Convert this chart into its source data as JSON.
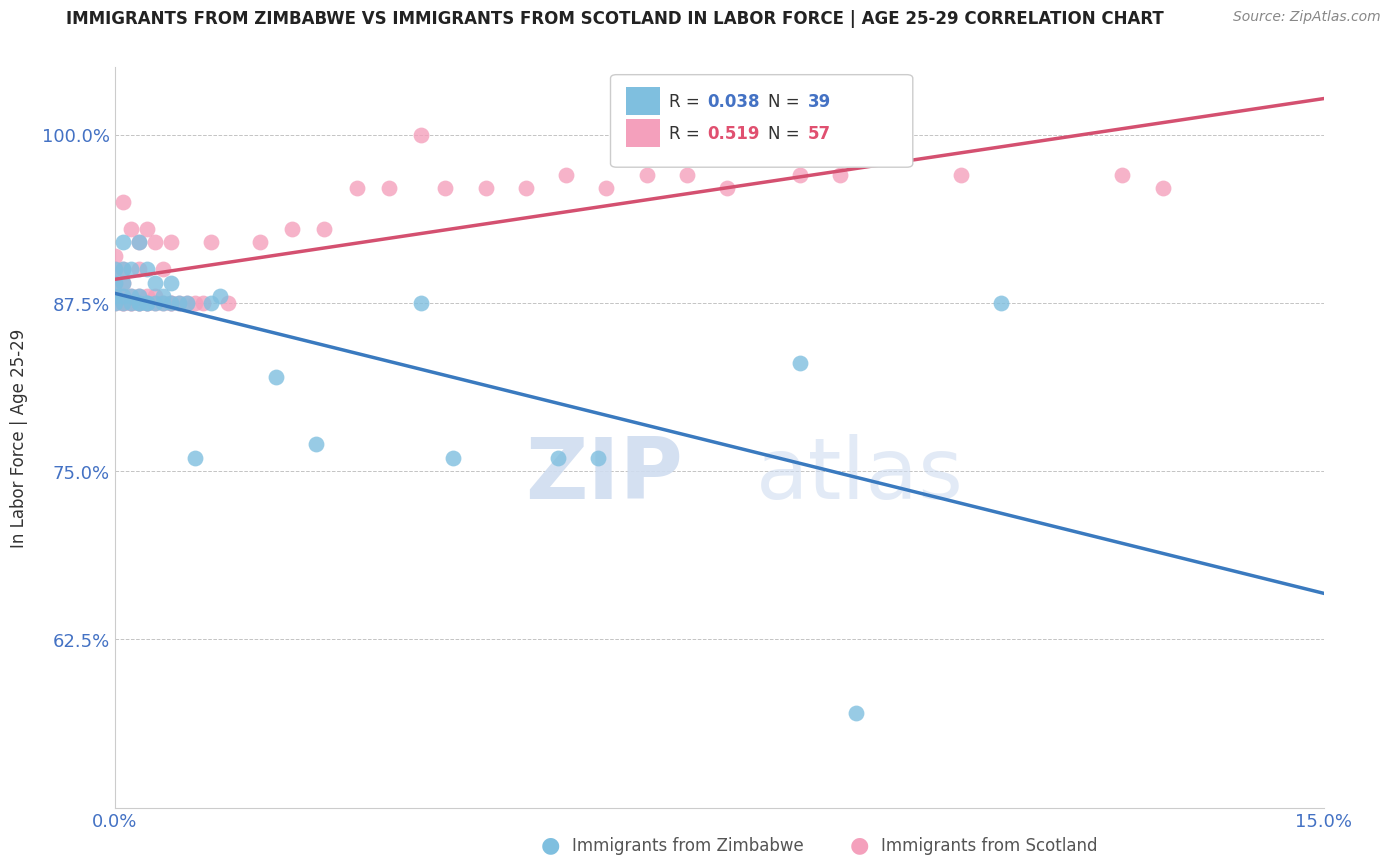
{
  "title": "IMMIGRANTS FROM ZIMBABWE VS IMMIGRANTS FROM SCOTLAND IN LABOR FORCE | AGE 25-29 CORRELATION CHART",
  "source": "Source: ZipAtlas.com",
  "ylabel": "In Labor Force | Age 25-29",
  "xlim": [
    0.0,
    0.15
  ],
  "ylim": [
    0.5,
    1.05
  ],
  "yticks": [
    0.625,
    0.75,
    0.875,
    1.0
  ],
  "ytick_labels": [
    "62.5%",
    "75.0%",
    "87.5%",
    "100.0%"
  ],
  "xticks": [
    0.0,
    0.15
  ],
  "xtick_labels": [
    "0.0%",
    "15.0%"
  ],
  "legend1_R": "0.038",
  "legend1_N": "39",
  "legend2_R": "0.519",
  "legend2_N": "57",
  "color_zimbabwe": "#7fbfdf",
  "color_scotland": "#f4a0bc",
  "color_line_zimbabwe": "#3a7abf",
  "color_line_scotland": "#d45070",
  "watermark_zip": "ZIP",
  "watermark_atlas": "atlas",
  "zimbabwe_x": [
    0.0,
    0.0,
    0.0,
    0.0,
    0.001,
    0.001,
    0.001,
    0.001,
    0.001,
    0.002,
    0.002,
    0.002,
    0.003,
    0.003,
    0.003,
    0.003,
    0.004,
    0.004,
    0.004,
    0.005,
    0.005,
    0.006,
    0.006,
    0.007,
    0.007,
    0.008,
    0.009,
    0.01,
    0.012,
    0.013,
    0.02,
    0.025,
    0.038,
    0.042,
    0.055,
    0.06,
    0.085,
    0.092,
    0.11
  ],
  "zimbabwe_y": [
    0.875,
    0.88,
    0.89,
    0.9,
    0.875,
    0.88,
    0.89,
    0.9,
    0.92,
    0.875,
    0.88,
    0.9,
    0.875,
    0.875,
    0.88,
    0.92,
    0.875,
    0.875,
    0.9,
    0.875,
    0.89,
    0.88,
    0.875,
    0.875,
    0.89,
    0.875,
    0.875,
    0.76,
    0.875,
    0.88,
    0.82,
    0.77,
    0.875,
    0.76,
    0.76,
    0.76,
    0.83,
    0.57,
    0.875
  ],
  "scotland_x": [
    0.0,
    0.0,
    0.0,
    0.0,
    0.0,
    0.001,
    0.001,
    0.001,
    0.001,
    0.001,
    0.001,
    0.002,
    0.002,
    0.002,
    0.002,
    0.003,
    0.003,
    0.003,
    0.003,
    0.003,
    0.004,
    0.004,
    0.004,
    0.004,
    0.005,
    0.005,
    0.005,
    0.006,
    0.006,
    0.007,
    0.007,
    0.007,
    0.008,
    0.009,
    0.01,
    0.011,
    0.012,
    0.014,
    0.018,
    0.022,
    0.026,
    0.03,
    0.034,
    0.038,
    0.041,
    0.046,
    0.051,
    0.056,
    0.061,
    0.066,
    0.071,
    0.076,
    0.085,
    0.09,
    0.105,
    0.125,
    0.13
  ],
  "scotland_y": [
    0.875,
    0.88,
    0.89,
    0.9,
    0.91,
    0.875,
    0.88,
    0.89,
    0.9,
    0.875,
    0.95,
    0.875,
    0.88,
    0.875,
    0.93,
    0.875,
    0.875,
    0.88,
    0.9,
    0.92,
    0.875,
    0.875,
    0.88,
    0.93,
    0.875,
    0.88,
    0.92,
    0.875,
    0.9,
    0.875,
    0.875,
    0.92,
    0.875,
    0.875,
    0.875,
    0.875,
    0.92,
    0.875,
    0.92,
    0.93,
    0.93,
    0.96,
    0.96,
    1.0,
    0.96,
    0.96,
    0.96,
    0.97,
    0.96,
    0.97,
    0.97,
    0.96,
    0.97,
    0.97,
    0.97,
    0.97,
    0.96
  ]
}
